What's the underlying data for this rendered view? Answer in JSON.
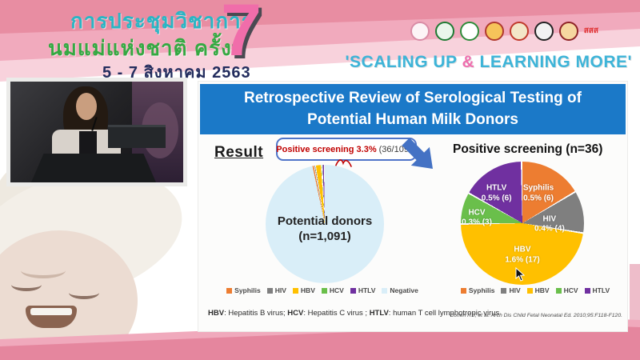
{
  "header": {
    "conference_title_line1": "การประชุมวิชาการ",
    "conference_title_line2": "นมแม่แห่งชาติ ครั้งที่",
    "conference_dates": "5 - 7 สิงหาคม 2563",
    "edition_number": "7",
    "slogan_part1": "'SCALING UP ",
    "slogan_amp": "&",
    "slogan_part2": " LEARNING MORE'",
    "colors": {
      "stripe_dark": "#e88da2",
      "stripe_mid": "#f1aabd",
      "stripe_light": "#f8d2dc",
      "edition_pink": "#f06daa",
      "title_teal": "#2ab5c4",
      "title_green": "#35a942",
      "date_navy": "#232d5e",
      "slogan_blue": "#3db4d8",
      "slogan_amp_pink": "#ef6fae"
    },
    "logos": [
      {
        "name": "breastfeeding-center-logo",
        "ring": "#d98ca6",
        "fill": "#fdf4f7"
      },
      {
        "name": "department-of-health-logo",
        "ring": "#1e7a33",
        "fill": "#eaf6ec"
      },
      {
        "name": "medical-association-logo",
        "ring": "#2e8b3a",
        "fill": "#ffffff"
      },
      {
        "name": "royal-emblem-logo",
        "ring": "#b03a2e",
        "fill": "#f6c45a"
      },
      {
        "name": "royal-college-logo",
        "ring": "#c0392b",
        "fill": "#f3e6c8"
      },
      {
        "name": "university-emblem-logo",
        "ring": "#222222",
        "fill": "#f2f2f2"
      },
      {
        "name": "medical-college-logo",
        "ring": "#8e2326",
        "fill": "#f6d7a0"
      },
      {
        "name": "thai-health-promotion-logo",
        "text": "สสส",
        "fg": "#e03131"
      }
    ]
  },
  "slide": {
    "title": "Retrospective Review of Serological Testing of Potential Human Milk Donors",
    "result_label": "Result",
    "callout_highlight": "Positive screening 3.3%",
    "callout_detail": "(36/1091)",
    "title_bar_color": "#1b79c8",
    "callout_text_color": "#c00000",
    "arrow_color": "#4472c4",
    "footnote": [
      "HBV",
      ": Hepatitis B virus; ",
      "HCV",
      ": Hepatitis C virus ; ",
      "HTLV",
      ": human T cell lymphotropic virus"
    ],
    "citation": "Cohen RS, et al. Arch Dis Child Fetal Neonatal Ed. 2010;95:F118-F120."
  },
  "chart_data": [
    {
      "type": "pie",
      "title": "Potential donors (n=1,091)",
      "center_line1": "Potential donors",
      "center_line2": "(n=1,091)",
      "n": 1091,
      "labels": [
        "Syphilis",
        "HIV",
        "HBV",
        "HCV",
        "HTLV",
        "Negative"
      ],
      "values": [
        6,
        4,
        17,
        3,
        6,
        1055
      ],
      "colors": [
        "#ed7d31",
        "#7f7f7f",
        "#ffc000",
        "#6abf4b",
        "#7030a0",
        "#d9eef8"
      ],
      "annotation": "Positive screening 3.3% (36/1091)",
      "start_deg": -12,
      "legend_position": "bottom"
    },
    {
      "type": "pie",
      "title": "Positive screening (n=36)",
      "n": 36,
      "slices": [
        {
          "label": "Syphilis",
          "percent": "0.5%",
          "count": 6,
          "color": "#ed7d31"
        },
        {
          "label": "HIV",
          "percent": "0.4%",
          "count": 4,
          "color": "#7f7f7f"
        },
        {
          "label": "HBV",
          "percent": "1.6%",
          "count": 17,
          "color": "#ffc000"
        },
        {
          "label": "HCV",
          "percent": "0.3%",
          "count": 3,
          "color": "#6abf4b"
        },
        {
          "label": "HTLV",
          "percent": "0.5%",
          "count": 6,
          "color": "#7030a0"
        }
      ],
      "start_deg": 0,
      "legend_position": "bottom"
    }
  ]
}
